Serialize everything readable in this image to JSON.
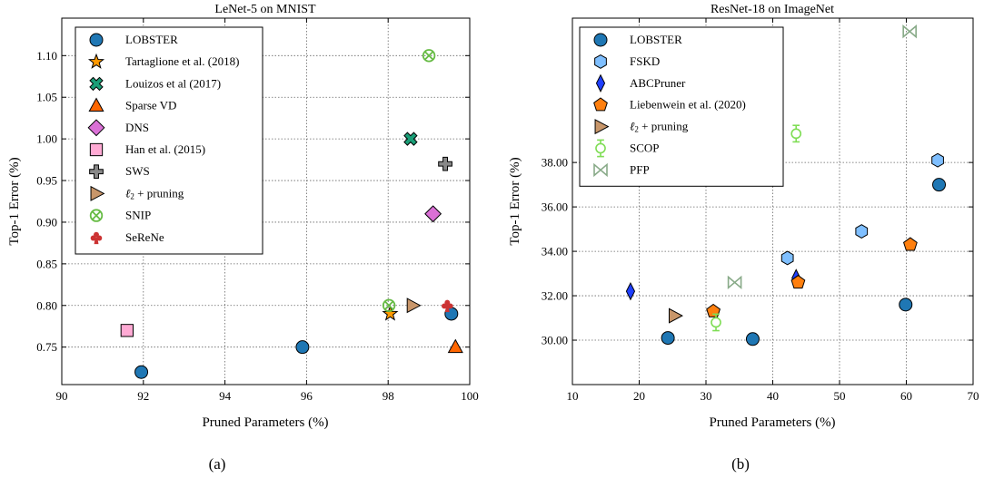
{
  "chart_data": [
    {
      "type": "scatter",
      "title": "LeNet-5 on MNIST",
      "xlabel": "Pruned Parameters (%)",
      "ylabel": "Top-1 Error (%)",
      "caption": "(a)",
      "xlim": [
        90,
        100
      ],
      "ylim": [
        0.705,
        1.145
      ],
      "xticks": [
        90,
        92,
        94,
        96,
        98,
        100
      ],
      "xtick_labels": [
        "90",
        "92",
        "94",
        "96",
        "98",
        "100"
      ],
      "yticks": [
        0.75,
        0.8,
        0.85,
        0.9,
        0.95,
        1.0,
        1.05,
        1.1
      ],
      "ytick_labels": [
        "0.75",
        "0.80",
        "0.85",
        "0.90",
        "0.95",
        "1.00",
        "1.05",
        "1.10"
      ],
      "grid": true,
      "legend_position": "top-left",
      "series": [
        {
          "name": "LOBSTER",
          "marker": "circle",
          "color": "#1f77b4",
          "points": [
            [
              91.95,
              0.72
            ],
            [
              95.9,
              0.75
            ],
            [
              99.55,
              0.79
            ]
          ]
        },
        {
          "name": "Tartaglione et al. (2018)",
          "marker": "star",
          "color": "#ff9900",
          "points": [
            [
              98.05,
              0.79
            ]
          ]
        },
        {
          "name": "Louizos et al (2017)",
          "marker": "x-filled",
          "color": "#1a9e77",
          "points": [
            [
              98.55,
              1.0
            ]
          ]
        },
        {
          "name": "Sparse VD",
          "marker": "triangle-up",
          "color": "#ff6600",
          "points": [
            [
              99.65,
              0.75
            ]
          ]
        },
        {
          "name": "DNS",
          "marker": "diamond",
          "color": "#da70d6",
          "points": [
            [
              99.1,
              0.91
            ]
          ]
        },
        {
          "name": "Han et al. (2015)",
          "marker": "square",
          "color": "#ffaad4",
          "points": [
            [
              91.6,
              0.77
            ]
          ]
        },
        {
          "name": "SWS",
          "marker": "plus-filled",
          "color": "#888888",
          "points": [
            [
              99.4,
              0.97
            ]
          ]
        },
        {
          "name": "ℓ2 + pruning",
          "marker": "triangle-right",
          "color": "#c8966a",
          "points": [
            [
              98.6,
              0.8
            ]
          ]
        },
        {
          "name": "SNIP",
          "marker": "circle-x",
          "color": "#66bb44",
          "points": [
            [
              98.02,
              0.8
            ],
            [
              99.0,
              1.1
            ]
          ]
        },
        {
          "name": "SeReNe",
          "marker": "club",
          "color": "#cc3333",
          "points": [
            [
              99.45,
              0.8
            ]
          ]
        }
      ]
    },
    {
      "type": "scatter",
      "title": "ResNet-18 on ImageNet",
      "xlabel": "Pruned Parameters (%)",
      "ylabel": "Top-1 Error (%)",
      "caption": "(b)",
      "xlim": [
        10,
        70
      ],
      "ylim": [
        28.0,
        44.5
      ],
      "xticks": [
        10,
        20,
        30,
        40,
        50,
        60,
        70
      ],
      "xtick_labels": [
        "10",
        "20",
        "30",
        "40",
        "50",
        "60",
        "70"
      ],
      "yticks": [
        30,
        32,
        34,
        36,
        38
      ],
      "ytick_labels": [
        "30.00",
        "32.00",
        "34.00",
        "36.00",
        "38.00"
      ],
      "xgrid": [
        20,
        30,
        40,
        50,
        60
      ],
      "ygrid": [
        30,
        32,
        34,
        36,
        38
      ],
      "grid": true,
      "legend_position": "top-left",
      "series": [
        {
          "name": "LOBSTER",
          "marker": "circle",
          "color": "#1f77b4",
          "points": [
            [
              24.3,
              30.1
            ],
            [
              37.0,
              30.05
            ],
            [
              59.9,
              31.6
            ],
            [
              64.9,
              37.0
            ]
          ]
        },
        {
          "name": "FSKD",
          "marker": "hexagon",
          "color": "#7fbfff",
          "points": [
            [
              42.2,
              33.7
            ],
            [
              53.3,
              34.9
            ],
            [
              64.7,
              38.1
            ]
          ]
        },
        {
          "name": "ABCPruner",
          "marker": "thin-diamond",
          "color": "#1f3fff",
          "points": [
            [
              18.7,
              32.2
            ],
            [
              43.5,
              32.8
            ]
          ]
        },
        {
          "name": "Liebenwein et al. (2020)",
          "marker": "pentagon",
          "color": "#ff7f0e",
          "points": [
            [
              31.1,
              31.3
            ],
            [
              43.8,
              32.6
            ],
            [
              60.6,
              34.3
            ]
          ]
        },
        {
          "name": "ℓ2 + pruning",
          "marker": "triangle-right",
          "color": "#c8966a",
          "points": [
            [
              25.3,
              31.1
            ]
          ]
        },
        {
          "name": "SCOP",
          "marker": "errorbar-circle",
          "color": "#7fdd55",
          "points": [
            [
              31.5,
              30.8
            ],
            [
              43.5,
              39.3
            ]
          ],
          "yerr": 0.25
        },
        {
          "name": "PFP",
          "marker": "bowtie",
          "color": "#88aa88",
          "points": [
            [
              34.3,
              32.6
            ],
            [
              60.5,
              43.9
            ]
          ]
        }
      ]
    }
  ]
}
